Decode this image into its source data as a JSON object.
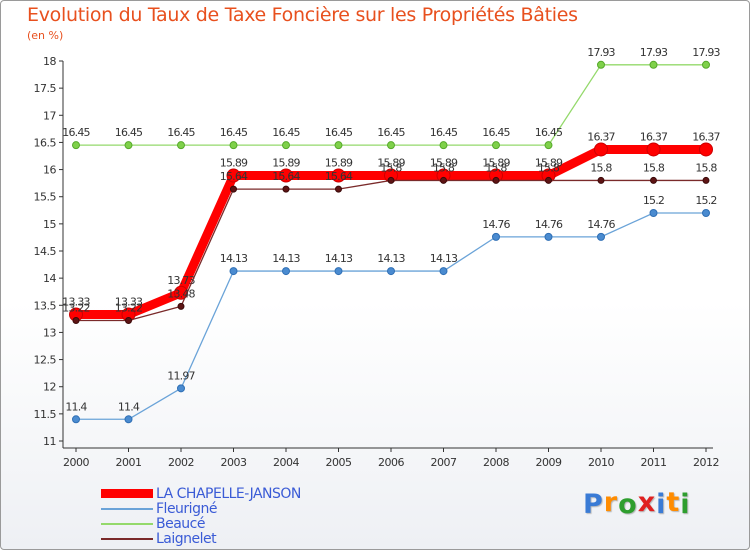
{
  "chart_data": {
    "type": "line",
    "title": "Evolution du Taux de Taxe Foncière sur les Propriétés Bâties",
    "subtitle": "(en %)",
    "xlabel": "",
    "ylabel": "",
    "categories": [
      "2000",
      "2001",
      "2002",
      "2003",
      "2004",
      "2005",
      "2006",
      "2007",
      "2008",
      "2009",
      "2010",
      "2011",
      "2012"
    ],
    "ylim": [
      11,
      18
    ],
    "y_ticks": [
      "11",
      "11.5",
      "12",
      "12.5",
      "13",
      "13.5",
      "14",
      "14.5",
      "15",
      "15.5",
      "16",
      "16.5",
      "17",
      "17.5",
      "18"
    ],
    "grid": false,
    "legend": "bottom-left",
    "series": [
      {
        "name": "LA CHAPELLE-JANSON",
        "color": "#ff0000",
        "values": [
          13.33,
          13.33,
          13.73,
          15.89,
          15.89,
          15.89,
          15.89,
          15.89,
          15.89,
          15.89,
          16.37,
          16.37,
          16.37
        ],
        "labels": [
          "13.33",
          "13.33",
          "13.73",
          "15.89",
          "15.89",
          "15.89",
          "15.89",
          "15.89",
          "15.89",
          "15.89",
          "16.37",
          "16.37",
          "16.37"
        ]
      },
      {
        "name": "Fleurigné",
        "color": "#5f9ed6",
        "values": [
          11.4,
          11.4,
          11.97,
          14.13,
          14.13,
          14.13,
          14.13,
          14.13,
          14.76,
          14.76,
          14.76,
          15.2,
          15.2
        ],
        "labels": [
          "11.4",
          "11.4",
          "11.97",
          "14.13",
          "14.13",
          "14.13",
          "14.13",
          "14.13",
          "14.76",
          "14.76",
          "14.76",
          "15.2",
          "15.2"
        ]
      },
      {
        "name": "Beaucé",
        "color": "#8fd65a",
        "values": [
          16.45,
          16.45,
          16.45,
          16.45,
          16.45,
          16.45,
          16.45,
          16.45,
          16.45,
          16.45,
          17.93,
          17.93,
          17.93
        ],
        "labels": [
          "16.45",
          "16.45",
          "16.45",
          "16.45",
          "16.45",
          "16.45",
          "16.45",
          "16.45",
          "16.45",
          "16.45",
          "17.93",
          "17.93",
          "17.93"
        ]
      },
      {
        "name": "Laignelet",
        "color": "#7a2222",
        "values": [
          13.22,
          13.22,
          13.48,
          15.64,
          15.64,
          15.64,
          15.8,
          15.8,
          15.8,
          15.8,
          15.8,
          15.8,
          15.8
        ],
        "labels": [
          "13.22",
          "13.22",
          "13.48",
          "15.64",
          "15.64",
          "15.64",
          "15.8",
          "15.8",
          "15.8",
          "15.8",
          "15.8",
          "15.8",
          "15.8"
        ]
      }
    ]
  },
  "logo": {
    "text": "Proxiti",
    "letters": [
      "P",
      "r",
      "o",
      "x",
      "i",
      "t",
      "i"
    ],
    "colors": [
      "#3a7bd5",
      "#ff8c00",
      "#2e9e2e",
      "#e02020",
      "#3a7bd5",
      "#ff8c00",
      "#2e9e2e"
    ]
  }
}
